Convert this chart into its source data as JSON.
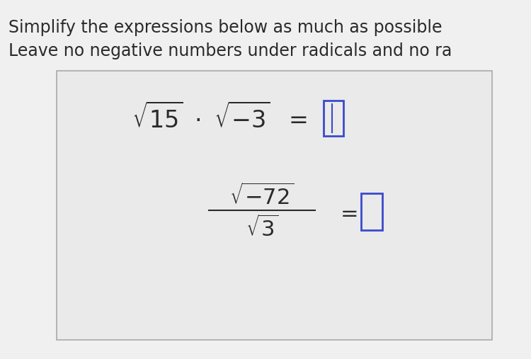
{
  "title_line1": "Simplify the expressions below as much as possible",
  "title_line2": "Leave no negative numbers under radicals and no ra",
  "bg_color": "#f0f0f0",
  "box_bg": "#ebebeb",
  "box_edge_color": "#aaaaaa",
  "input_box_color": "#3a4acc",
  "text_color": "#2a2a2a",
  "fig_width": 7.5,
  "fig_height": 5.07,
  "dpi": 100
}
